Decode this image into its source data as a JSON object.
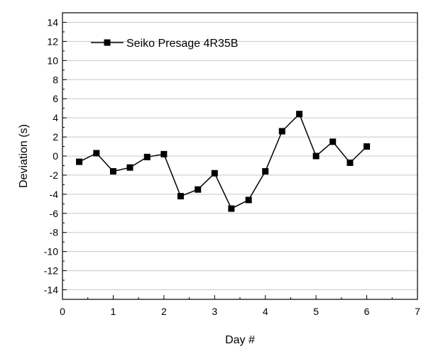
{
  "chart_data": {
    "type": "line",
    "title": "",
    "xlabel": "Day #",
    "ylabel": "Deviation (s)",
    "xlim": [
      0,
      7
    ],
    "ylim": [
      -15,
      15
    ],
    "x_ticks": [
      0,
      1,
      2,
      3,
      4,
      5,
      6,
      7
    ],
    "y_ticks": [
      -14,
      -12,
      -10,
      -8,
      -6,
      -4,
      -2,
      0,
      2,
      4,
      6,
      8,
      10,
      12,
      14
    ],
    "grid": "horizontal",
    "legend_position": "top-left",
    "series": [
      {
        "name": "Seiko Presage 4R35B",
        "color": "#000000",
        "marker": "square",
        "x": [
          0.33,
          0.67,
          1.0,
          1.33,
          1.67,
          2.0,
          2.33,
          2.67,
          3.0,
          3.33,
          3.67,
          4.0,
          4.33,
          4.67,
          5.0,
          5.33,
          5.67,
          6.0
        ],
        "y": [
          -0.6,
          0.3,
          -1.6,
          -1.2,
          -0.1,
          0.2,
          -4.2,
          -3.5,
          -1.8,
          -5.5,
          -4.6,
          -1.6,
          2.6,
          4.4,
          0.0,
          1.5,
          -0.7,
          1.0
        ]
      }
    ]
  }
}
